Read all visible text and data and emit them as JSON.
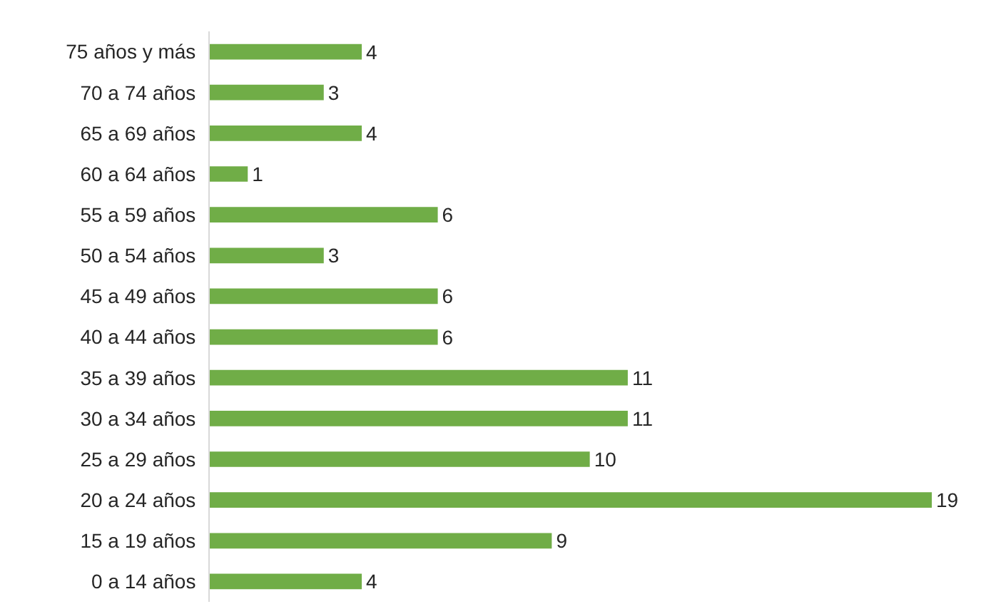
{
  "chart_data": {
    "type": "bar",
    "orientation": "horizontal",
    "categories": [
      "75 años y más",
      "70 a 74 años",
      "65 a 69 años",
      "60 a 64 años",
      "55 a 59 años",
      "50 a 54 años",
      "45 a 49 años",
      "40 a 44 años",
      "35 a 39 años",
      "30 a 34 años",
      "25 a 29 años",
      "20 a 24 años",
      "15 a 19 años",
      "0 a 14 años"
    ],
    "values": [
      4,
      3,
      4,
      1,
      6,
      3,
      6,
      6,
      11,
      11,
      10,
      19,
      9,
      4
    ],
    "color": "#70ad47",
    "data_labels": true,
    "legend": false,
    "tick_labels": "y"
  }
}
